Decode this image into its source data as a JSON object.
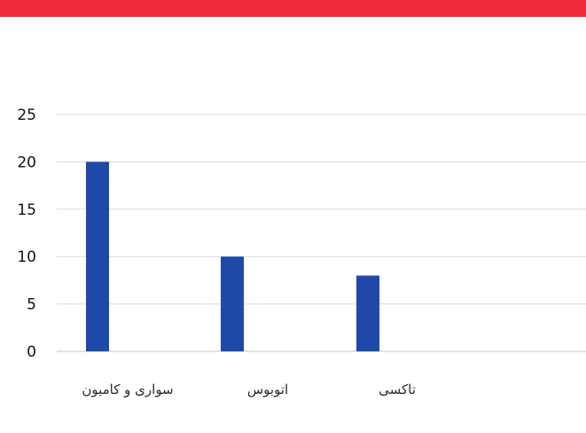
{
  "header": {
    "bar_color": "#ec2a3a"
  },
  "chart_data": {
    "type": "bar",
    "categories": [
      "سواری و کامیون",
      "اتوبوس",
      "تاکسی"
    ],
    "values": [
      20,
      10,
      8
    ],
    "yticks": [
      0,
      5,
      10,
      15,
      20,
      25
    ],
    "ylim": [
      0,
      25
    ],
    "grid": true,
    "legend": "none",
    "bar_color": "#1f49a8",
    "grid_color": "#d9d9d9"
  }
}
